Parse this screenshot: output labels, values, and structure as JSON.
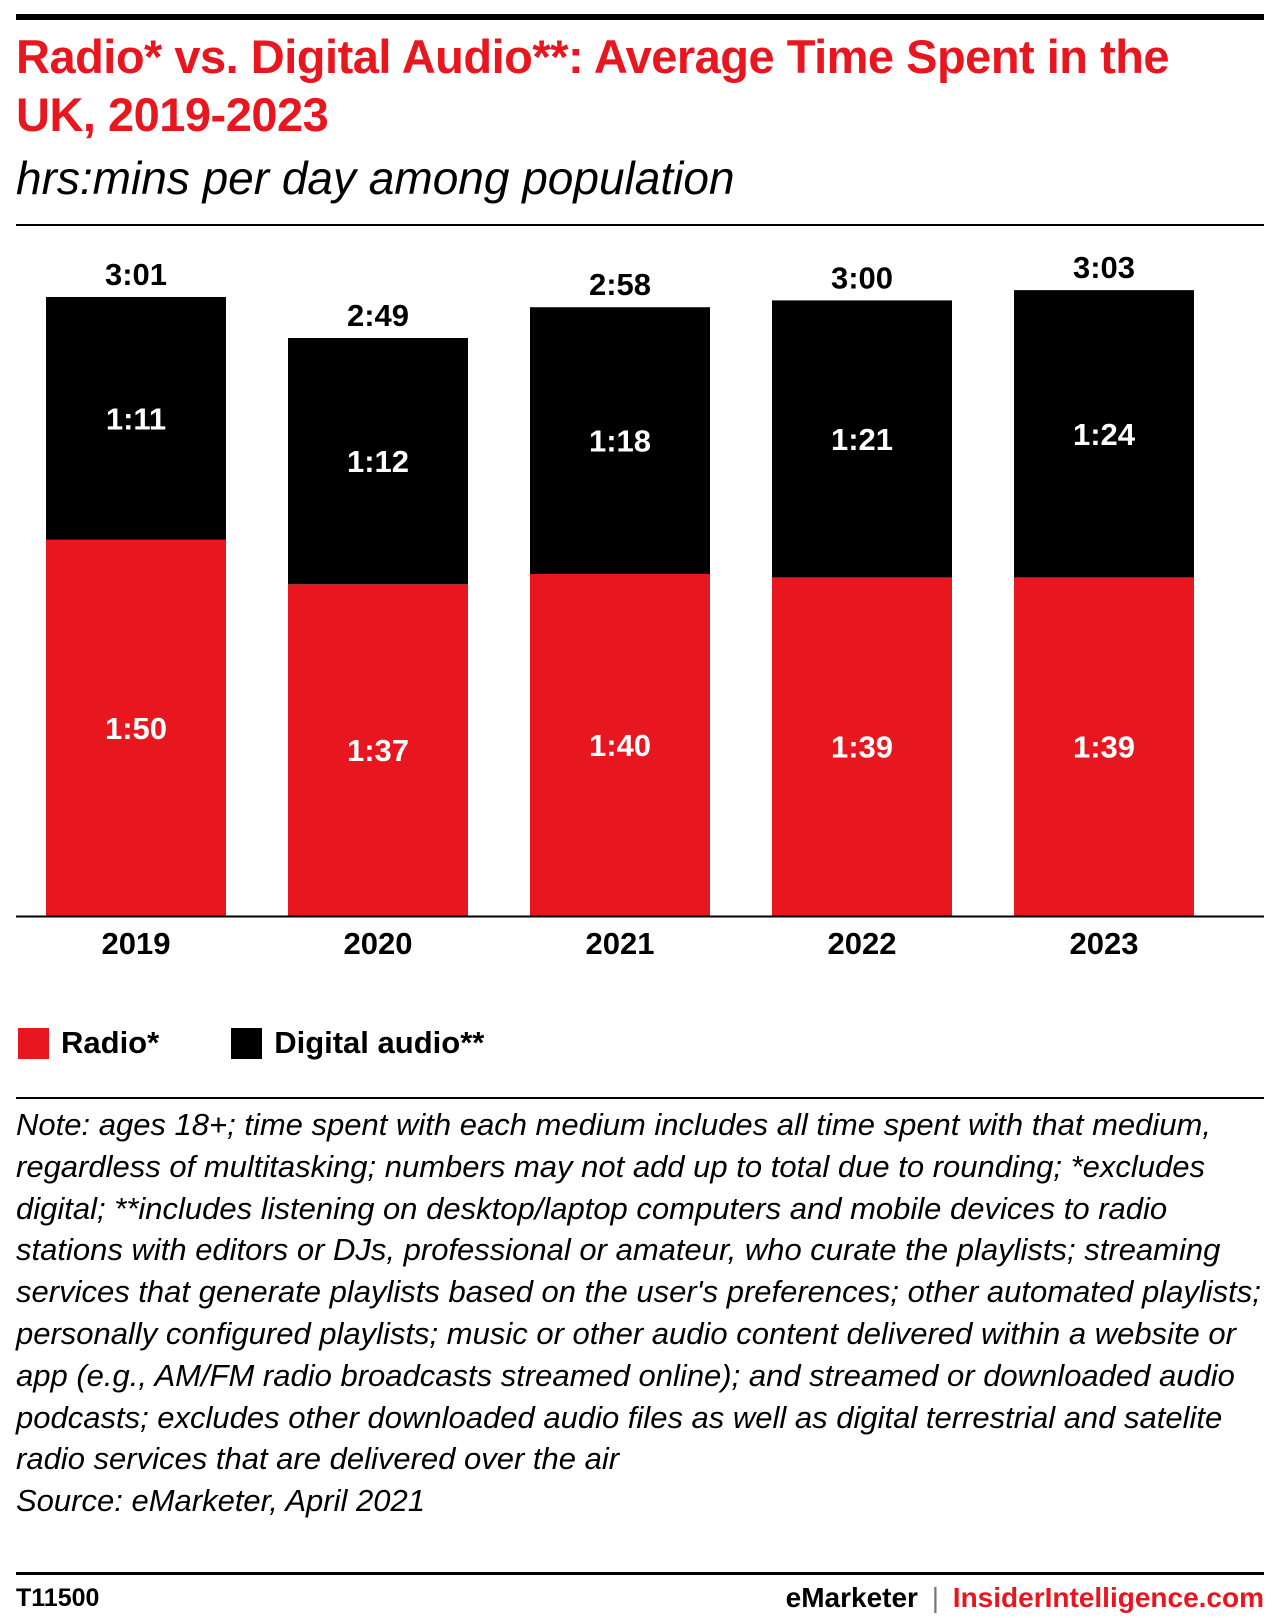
{
  "header": {
    "title": "Radio* vs. Digital Audio**: Average Time Spent in the UK, 2019-2023",
    "subtitle": "hrs:mins per day among population"
  },
  "chart_data": {
    "type": "bar",
    "stacked": true,
    "categories": [
      "2019",
      "2020",
      "2021",
      "2022",
      "2023"
    ],
    "series": [
      {
        "name": "Radio*",
        "color": "#e8161e",
        "values": [
          110,
          97,
          100,
          99,
          99
        ],
        "labels": [
          "1:50",
          "1:37",
          "1:40",
          "1:39",
          "1:39"
        ]
      },
      {
        "name": "Digital audio**",
        "color": "#000000",
        "values": [
          71,
          72,
          78,
          81,
          84
        ],
        "labels": [
          "1:11",
          "1:12",
          "1:18",
          "1:21",
          "1:24"
        ]
      }
    ],
    "totals": [
      181,
      169,
      178,
      180,
      183
    ],
    "total_labels": [
      "3:01",
      "2:49",
      "2:58",
      "3:00",
      "3:03"
    ],
    "ylim": [
      0,
      200
    ],
    "grid": false,
    "legend": "bottom-left"
  },
  "notes": {
    "note": "Note: ages 18+; time spent with each medium includes all time spent with that medium, regardless of multitasking; numbers may not add up to total due to rounding; *excludes digital; **includes listening on desktop/laptop computers and mobile devices to radio stations with editors or DJs, professional or amateur, who curate the playlists; streaming services that generate playlists based on the user's preferences; other automated playlists; personally configured playlists; music or other audio content delivered within a website or app (e.g., AM/FM radio broadcasts streamed online); and streamed or downloaded audio podcasts; excludes other downloaded audio files as well as digital terrestrial and satelite radio services that are delivered over the air",
    "source": "Source: eMarketer, April 2021"
  },
  "footer": {
    "chart_id": "T11500",
    "brand": "eMarketer",
    "separator": "|",
    "site": "InsiderIntelligence.com"
  }
}
